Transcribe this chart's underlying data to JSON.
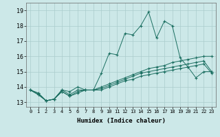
{
  "xlabel": "Humidex (Indice chaleur)",
  "background_color": "#cce8e8",
  "grid_color": "#aacccc",
  "line_color": "#1a6e60",
  "xlim": [
    -0.5,
    23.5
  ],
  "ylim": [
    12.7,
    19.5
  ],
  "yticks": [
    13,
    14,
    15,
    16,
    17,
    18,
    19
  ],
  "xticks": [
    0,
    1,
    2,
    3,
    4,
    5,
    6,
    7,
    8,
    9,
    10,
    11,
    12,
    13,
    14,
    15,
    16,
    17,
    18,
    19,
    20,
    21,
    22,
    23
  ],
  "series": [
    [
      13.8,
      13.6,
      13.1,
      13.2,
      13.8,
      13.7,
      14.0,
      13.8,
      13.8,
      14.9,
      16.2,
      16.1,
      17.5,
      17.4,
      18.0,
      18.9,
      17.2,
      18.3,
      18.0,
      15.9,
      15.3,
      14.6,
      15.0,
      15.0
    ],
    [
      13.8,
      13.6,
      13.1,
      13.2,
      13.8,
      13.5,
      13.8,
      13.8,
      13.8,
      14.0,
      14.2,
      14.4,
      14.6,
      14.8,
      15.0,
      15.2,
      15.3,
      15.4,
      15.6,
      15.7,
      15.8,
      15.9,
      16.0,
      16.0
    ],
    [
      13.8,
      13.5,
      13.1,
      13.2,
      13.7,
      13.4,
      13.7,
      13.8,
      13.8,
      13.9,
      14.1,
      14.3,
      14.5,
      14.7,
      14.9,
      15.0,
      15.1,
      15.2,
      15.3,
      15.4,
      15.5,
      15.6,
      15.7,
      15.0
    ],
    [
      13.8,
      13.5,
      13.1,
      13.2,
      13.7,
      13.4,
      13.6,
      13.8,
      13.8,
      13.8,
      14.0,
      14.2,
      14.4,
      14.5,
      14.7,
      14.8,
      14.9,
      15.0,
      15.1,
      15.2,
      15.3,
      15.4,
      15.5,
      14.9
    ]
  ]
}
